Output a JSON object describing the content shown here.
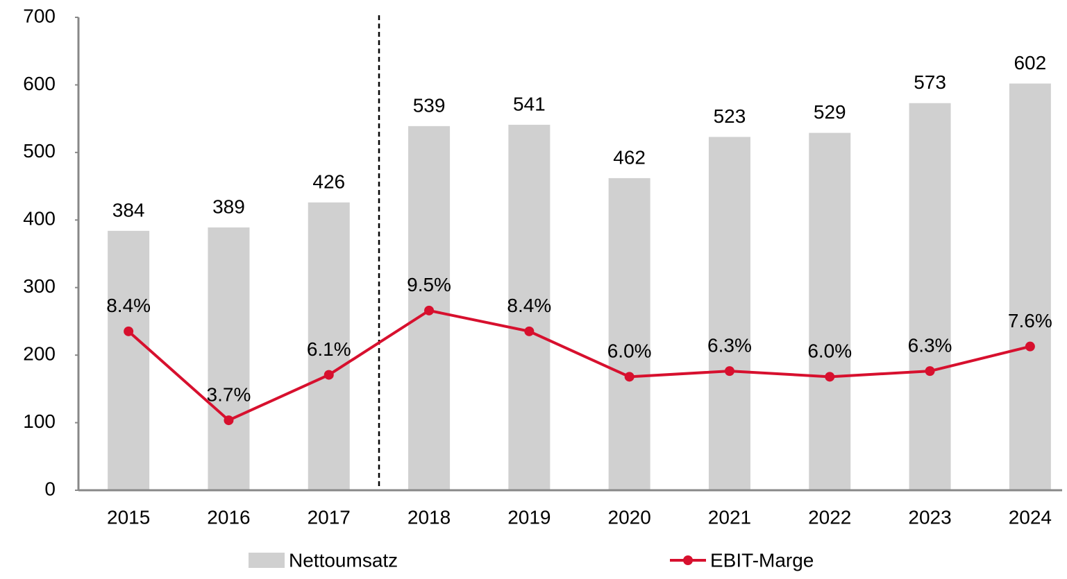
{
  "chart_data": {
    "type": "bar_line",
    "categories": [
      "2015",
      "2016",
      "2017",
      "2018",
      "2019",
      "2020",
      "2021",
      "2022",
      "2023",
      "2024"
    ],
    "series": [
      {
        "name": "Nettoumsatz",
        "type": "bar",
        "color": "#d0d0d0",
        "values": [
          384,
          389,
          426,
          539,
          541,
          462,
          523,
          529,
          573,
          602
        ]
      },
      {
        "name": "EBIT-Marge",
        "type": "line",
        "axis": "y2",
        "color": "#d7102e",
        "values": [
          8.4,
          3.7,
          6.1,
          9.5,
          8.4,
          6.0,
          6.3,
          6.0,
          6.3,
          7.6
        ],
        "value_labels": [
          "8.4%",
          "3.7%",
          "6.1%",
          "9.5%",
          "8.4%",
          "6.0%",
          "6.3%",
          "6.0%",
          "6.3%",
          "7.6%"
        ]
      }
    ],
    "ylim": [
      0,
      700
    ],
    "yticks": [
      0,
      100,
      200,
      300,
      400,
      500,
      600,
      700
    ],
    "y2lim": [
      0,
      25
    ],
    "grid": false,
    "legend": "bottom"
  }
}
